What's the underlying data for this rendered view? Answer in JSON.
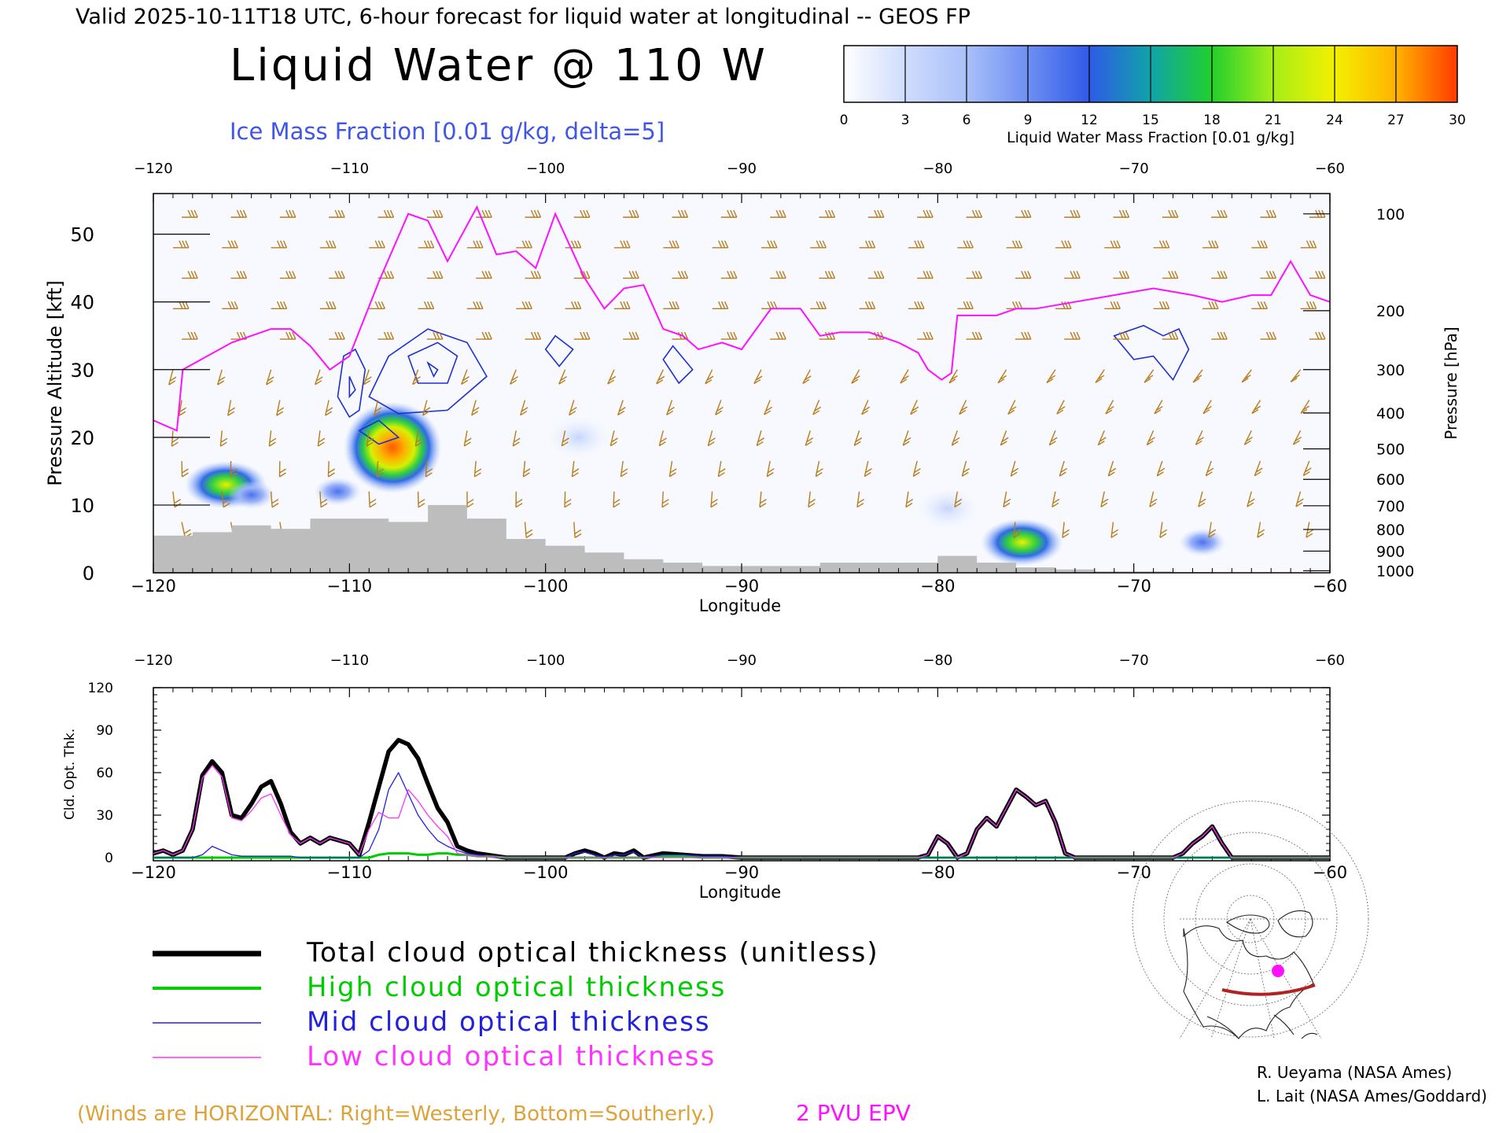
{
  "header": {
    "valid_line": "Valid 2025-10-11T18 UTC, 6-hour forecast for liquid water at longitudinal -- GEOS FP",
    "title": "Liquid Water @ 110 W",
    "ice_label": "Ice Mass Fraction [0.01 g/kg, delta=5]"
  },
  "colorbar": {
    "ticks": [
      "0",
      "3",
      "6",
      "9",
      "12",
      "15",
      "18",
      "21",
      "24",
      "27",
      "30"
    ],
    "label": "Liquid Water Mass Fraction [0.01 g/kg]",
    "colors": [
      "#f3f6ff",
      "#bcd0fb",
      "#8eaaf7",
      "#5f82f1",
      "#2f5ae7",
      "#1296c8",
      "#22cf2e",
      "#a6ee18",
      "#f3f000",
      "#ffb300",
      "#ff6a00"
    ]
  },
  "colors": {
    "wind_barbs": "#b87d1a",
    "epv": "#ff10ff",
    "ice_contours": "#1e2fd0",
    "terrain": "#bdbdbd",
    "axis": "#000000",
    "total": "#000000",
    "high": "#00cc00",
    "mid": "#2222dd",
    "low": "#ff33ff",
    "ice_label": "#3f56e6",
    "winds_note": "#dea23a"
  },
  "chart_data": [
    {
      "type": "heatmap",
      "title": "Liquid Water @ 110 W",
      "xlabel": "Longitude",
      "ylabel": "Pressure Altitude [kft]",
      "ylabel_right": "Pressure [hPa]",
      "x_ticks": [
        "−120",
        "−110",
        "−100",
        "−90",
        "−80",
        "−70",
        "−60"
      ],
      "y_ticks": [
        "0",
        "10",
        "20",
        "30",
        "40",
        "50"
      ],
      "pressure_ticks": [
        "100",
        "200",
        "300",
        "400",
        "500",
        "600",
        "700",
        "800",
        "900",
        "1000"
      ],
      "xlim": [
        -120,
        -60
      ],
      "ylim": [
        0,
        56
      ],
      "liquid_water_blobs": [
        {
          "lon": -116.3,
          "alt": 13,
          "value": 19
        },
        {
          "lon": -115.0,
          "alt": 11.5,
          "value": 8
        },
        {
          "lon": -110.6,
          "alt": 12,
          "value": 8
        },
        {
          "lon": -107.8,
          "alt": 18.5,
          "value": 29
        },
        {
          "lon": -98.3,
          "alt": 20,
          "value": 3
        },
        {
          "lon": -79.5,
          "alt": 9.5,
          "value": 3
        },
        {
          "lon": -75.7,
          "alt": 4.5,
          "value": 17
        },
        {
          "lon": -66.5,
          "alt": 4.5,
          "value": 7
        }
      ],
      "epv_2pvu_altitude_kft": {
        "lon": [
          -120,
          -118.8,
          -118.5,
          -116,
          -114,
          -113,
          -112,
          -111,
          -110,
          -108.5,
          -107,
          -106,
          -105,
          -103.5,
          -102.5,
          -101.5,
          -100.5,
          -99.5,
          -98,
          -97,
          -96,
          -95,
          -94,
          -93,
          -92.2,
          -91,
          -90,
          -88.5,
          -87,
          -86,
          -85,
          -83.5,
          -82,
          -81,
          -80.5,
          -79.8,
          -79.3,
          -79,
          -78,
          -77,
          -76,
          -75,
          -73,
          -71,
          -69,
          -67,
          -65.5,
          -64,
          -63,
          -62,
          -61,
          -60
        ],
        "alt": [
          22.5,
          21,
          30,
          34,
          36,
          36,
          33.5,
          30,
          32,
          43,
          53,
          52,
          46,
          54,
          47,
          47.5,
          45,
          53,
          43.5,
          39,
          42,
          42.5,
          36,
          35,
          33,
          34,
          33,
          39,
          39,
          35,
          35.5,
          35.5,
          34,
          32.5,
          30,
          28.5,
          29.5,
          38,
          38,
          38,
          39,
          39,
          40,
          41,
          42,
          41,
          40,
          41,
          41,
          46,
          41,
          40
        ]
      },
      "ice_contour_count": 9,
      "terrain_kft": {
        "lon": [
          -120,
          -118,
          -116,
          -114,
          -112,
          -110,
          -108,
          -106,
          -104,
          -102,
          -100,
          -98,
          -96,
          -94,
          -92,
          -90,
          -88,
          -86,
          -84,
          -82,
          -80,
          -78,
          -76,
          -74,
          -72,
          -70,
          -68,
          -66,
          -64,
          -62,
          -60
        ],
        "alt": [
          5.5,
          6,
          7,
          6.5,
          8,
          8,
          7.5,
          10,
          8,
          5,
          4,
          3,
          2,
          1.5,
          1,
          1,
          1,
          1.5,
          1.5,
          1.5,
          2.5,
          1.5,
          0.8,
          0.5,
          0.2,
          0.2,
          0.1,
          0,
          0,
          0,
          0
        ]
      }
    },
    {
      "type": "line",
      "xlabel": "Longitude",
      "ylabel": "Cld. Opt. Thk.",
      "x_ticks": [
        "−120",
        "−110",
        "−100",
        "−90",
        "−80",
        "−70",
        "−60"
      ],
      "y_ticks": [
        "0",
        "30",
        "60",
        "90",
        "120"
      ],
      "xlim": [
        -120,
        -60
      ],
      "ylim": [
        0,
        120
      ],
      "x": [
        -120,
        -119.5,
        -119,
        -118.5,
        -118,
        -117.5,
        -117,
        -116.5,
        -116,
        -115.5,
        -115,
        -114.5,
        -114,
        -113.5,
        -113,
        -112.5,
        -112,
        -111.5,
        -111,
        -110.5,
        -110,
        -109.5,
        -109,
        -108.5,
        -108,
        -107.5,
        -107,
        -106.5,
        -106,
        -105.5,
        -105,
        -104.5,
        -104,
        -103.5,
        -103,
        -102,
        -101,
        -100,
        -99,
        -98.5,
        -98,
        -97.5,
        -97,
        -96.5,
        -96,
        -95.5,
        -95,
        -94,
        -93,
        -92,
        -91,
        -90,
        -88,
        -86,
        -84,
        -82,
        -81,
        -80.5,
        -80,
        -79.5,
        -79,
        -78.5,
        -78,
        -77.5,
        -77,
        -76.5,
        -76,
        -75.5,
        -75,
        -74.5,
        -74,
        -73.5,
        -73,
        -72,
        -71,
        -70,
        -69,
        -68,
        -67.5,
        -67,
        -66.5,
        -66,
        -65.5,
        -65,
        -64,
        -63,
        -62,
        -61,
        -60
      ],
      "series": [
        {
          "name": "Total cloud optical thickness (unitless)",
          "values": [
            3,
            5,
            2,
            5,
            20,
            58,
            68,
            60,
            30,
            28,
            38,
            50,
            54,
            38,
            18,
            10,
            14,
            10,
            14,
            12,
            10,
            2,
            25,
            50,
            75,
            83,
            80,
            70,
            52,
            35,
            25,
            8,
            5,
            3,
            2,
            0,
            0,
            0,
            0,
            3,
            5,
            3,
            0,
            3,
            2,
            5,
            0,
            3,
            2,
            1,
            1,
            0,
            0,
            0,
            0,
            0,
            0,
            2,
            15,
            10,
            0,
            3,
            20,
            28,
            22,
            35,
            48,
            43,
            37,
            40,
            25,
            3,
            0,
            0,
            0,
            0,
            0,
            0,
            3,
            10,
            15,
            22,
            10,
            0,
            0,
            0,
            0,
            0,
            0
          ]
        },
        {
          "name": "High cloud optical thickness",
          "values": [
            0,
            0,
            0,
            0,
            0,
            0,
            0,
            0,
            0,
            0,
            0,
            0,
            0,
            0,
            0,
            0,
            0,
            0,
            0,
            0,
            0,
            0,
            0,
            2,
            3,
            3,
            3,
            2,
            2,
            3,
            3,
            2,
            2,
            1,
            1,
            0,
            0,
            0,
            0,
            0,
            0,
            0,
            0,
            0,
            0,
            0,
            0,
            1,
            1,
            0,
            0,
            0,
            0,
            0,
            0,
            0,
            0,
            0,
            0,
            0,
            0,
            0,
            0,
            0,
            0,
            0,
            0,
            0,
            0,
            0,
            0,
            0,
            0,
            0,
            0,
            0,
            0,
            0,
            0,
            0,
            0,
            0,
            0,
            0,
            0,
            0,
            0,
            0,
            0
          ]
        },
        {
          "name": "Mid cloud optical thickness",
          "values": [
            0,
            0,
            0,
            0,
            0,
            2,
            8,
            5,
            2,
            1,
            1,
            1,
            1,
            1,
            1,
            0,
            0,
            0,
            0,
            0,
            0,
            0,
            5,
            20,
            48,
            60,
            45,
            30,
            20,
            12,
            8,
            5,
            3,
            2,
            1,
            0,
            0,
            0,
            0,
            3,
            4,
            2,
            0,
            2,
            2,
            4,
            0,
            2,
            2,
            1,
            1,
            0,
            0,
            0,
            0,
            0,
            0,
            0,
            0,
            0,
            0,
            0,
            0,
            0,
            0,
            0,
            0,
            0,
            0,
            0,
            0,
            0,
            0,
            0,
            0,
            0,
            0,
            0,
            0,
            0,
            0,
            0,
            0,
            0,
            0,
            0,
            0,
            0,
            0
          ]
        },
        {
          "name": "Low cloud optical thickness",
          "values": [
            3,
            5,
            2,
            5,
            20,
            56,
            65,
            57,
            28,
            26,
            33,
            42,
            45,
            30,
            16,
            10,
            14,
            10,
            14,
            12,
            10,
            2,
            20,
            32,
            28,
            28,
            48,
            40,
            30,
            22,
            15,
            3,
            2,
            1,
            1,
            0,
            0,
            0,
            0,
            0,
            0,
            0,
            0,
            0,
            0,
            0,
            0,
            0,
            0,
            0,
            0,
            0,
            0,
            0,
            0,
            0,
            0,
            2,
            15,
            10,
            0,
            3,
            20,
            28,
            22,
            35,
            48,
            43,
            37,
            40,
            25,
            3,
            0,
            0,
            0,
            0,
            0,
            0,
            3,
            10,
            15,
            22,
            10,
            0,
            0,
            0,
            0,
            0,
            0
          ]
        }
      ]
    }
  ],
  "legend": [
    {
      "label": "Total cloud optical thickness (unitless)",
      "color": "#000000"
    },
    {
      "label": "High cloud optical thickness",
      "color": "#00cc00"
    },
    {
      "label": "Mid cloud optical thickness",
      "color": "#2222dd"
    },
    {
      "label": "Low cloud optical thickness",
      "color": "#ff33ff"
    }
  ],
  "footer": {
    "winds_note": "(Winds are HORIZONTAL: Right=Westerly, Bottom=Southerly.)",
    "epv_label": "2 PVU EPV",
    "credit1": "R. Ueyama (NASA Ames)",
    "credit2": "L. Lait (NASA Ames/Goddard)"
  },
  "inset_map": {
    "marker_color": "#ff10ff",
    "track_color": "#b22222"
  }
}
